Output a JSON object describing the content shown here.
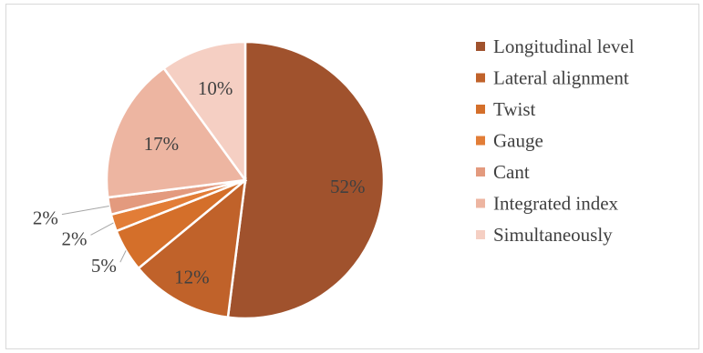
{
  "chart_data": {
    "type": "pie",
    "title": "",
    "legend_position": "right",
    "slices": [
      {
        "name": "Longitudinal level",
        "value": 52,
        "label": "52%",
        "color": "#a0522d"
      },
      {
        "name": "Lateral alignment",
        "value": 12,
        "label": "12%",
        "color": "#c0622a"
      },
      {
        "name": "Twist",
        "value": 5,
        "label": "5%",
        "color": "#d46f2a"
      },
      {
        "name": "Gauge",
        "value": 2,
        "label": "2%",
        "color": "#e27d37"
      },
      {
        "name": "Cant",
        "value": 2,
        "label": "2%",
        "color": "#e39a7e"
      },
      {
        "name": "Integrated index",
        "value": 17,
        "label": "17%",
        "color": "#edb5a1"
      },
      {
        "name": "Simultaneously",
        "value": 10,
        "label": "10%",
        "color": "#f5cfc3"
      }
    ]
  }
}
